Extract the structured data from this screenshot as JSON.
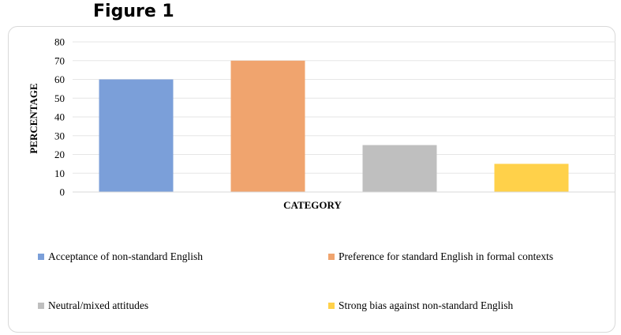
{
  "figure_title": "Figure 1",
  "chart_data": {
    "type": "bar",
    "categories": [
      "Acceptance of non-standard English",
      "Preference for standard English in formal contexts",
      "Neutral/mixed attitudes",
      "Strong bias against non-standard English"
    ],
    "values": [
      60,
      70,
      25,
      15
    ],
    "colors": [
      "#7b9fd9",
      "#f0a46e",
      "#bfbfbf",
      "#ffd14a"
    ],
    "xlabel": "CATEGORY",
    "ylabel": "PERCENTAGE",
    "ylim": [
      0,
      80
    ],
    "yticks": [
      "0",
      "10",
      "20",
      "30",
      "40",
      "50",
      "60",
      "70",
      "80"
    ],
    "grid": true,
    "legend_position": "bottom"
  }
}
